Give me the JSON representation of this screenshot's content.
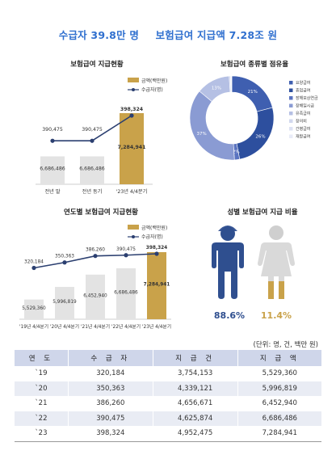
{
  "headline": {
    "recipients": "수급자 39.8만 명",
    "payment": "보험급여 지급액 7.28조 원"
  },
  "chart_data": [
    {
      "type": "bar",
      "title": "보험급여 지급현황",
      "legend": [
        "금액(백만원)",
        "수급자(명)"
      ],
      "categories": [
        "전년 말",
        "전년 동기",
        "'23년 4/4분기"
      ],
      "series": [
        {
          "name": "금액(백만원)",
          "values": [
            6686486,
            6686486,
            7284941
          ],
          "labels": [
            "6,686,486",
            "6,686,486",
            "7,284,941"
          ]
        },
        {
          "name": "수급자(명)",
          "values": [
            390475,
            390475,
            398324
          ],
          "labels": [
            "390,475",
            "390,475",
            "398,324"
          ]
        }
      ]
    },
    {
      "type": "pie",
      "title": "보험급여 종류별 점유율",
      "slices": [
        {
          "name": "요양급여",
          "value": 21,
          "label": "21%",
          "color": "#3f5fb0"
        },
        {
          "name": "휴업급여",
          "value": 26,
          "label": "26%",
          "color": "#2d4f9e"
        },
        {
          "name": "장해보상연금",
          "value": 2,
          "label": "2%",
          "color": "#5a73c0"
        },
        {
          "name": "장해일시금",
          "value": 37,
          "label": "37%",
          "color": "#8a9bd3"
        },
        {
          "name": "유족급여",
          "value": 13,
          "label": "13%",
          "color": "#b5c0e4"
        },
        {
          "name": "장의비",
          "value": 0.5,
          "label": "",
          "color": "#d2d8ee"
        },
        {
          "name": "간병급여",
          "value": 0.3,
          "label": "",
          "color": "#dde2f3"
        },
        {
          "name": "재활급여",
          "value": 0.2,
          "label": "",
          "color": "#e8ebf7"
        }
      ]
    },
    {
      "type": "bar",
      "title": "연도별 보험급여 지급현황",
      "legend": [
        "금액(백만원)",
        "수급자(명)"
      ],
      "categories": [
        "'19년 4/4분기",
        "'20년 4/4분기",
        "'21년 4/4분기",
        "'22년 4/4분기",
        "'23년 4/4분기"
      ],
      "series": [
        {
          "name": "금액(백만원)",
          "values": [
            5529360,
            5996819,
            6452940,
            6686486,
            7284941
          ],
          "labels": [
            "5,529,360",
            "5,996,819",
            "6,452,940",
            "6,686,486",
            "7,284,941"
          ]
        },
        {
          "name": "수급자(명)",
          "values": [
            320184,
            350363,
            386260,
            390475,
            398324
          ],
          "labels": [
            "320,184",
            "350,363",
            "386,260",
            "390,475",
            "398,324"
          ]
        }
      ]
    }
  ],
  "gender": {
    "title": "성별 보험급여 지급 비율",
    "male": "88.6%",
    "female": "11.4%",
    "male_color": "#2f4f8f",
    "female_color": "#c9a24a"
  },
  "table": {
    "unit": "(단위: 명, 건, 백만 원)",
    "headers": [
      "연 도",
      "수 급 자",
      "지 급 건",
      "지 급 액"
    ],
    "rows": [
      [
        "`19",
        "320,184",
        "3,754,153",
        "5,529,360"
      ],
      [
        "`20",
        "350,363",
        "4,339,121",
        "5,996,819"
      ],
      [
        "`21",
        "386,260",
        "4,656,671",
        "6,452,940"
      ],
      [
        "`22",
        "390,475",
        "4,625,874",
        "6,686,486"
      ],
      [
        "`23",
        "398,324",
        "4,952,475",
        "7,284,941"
      ]
    ]
  },
  "colors": {
    "accent": "#2f6fcf",
    "bar_gray": "#e3e3e3",
    "bar_gold": "#c9a24a",
    "line": "#2b3f70"
  }
}
